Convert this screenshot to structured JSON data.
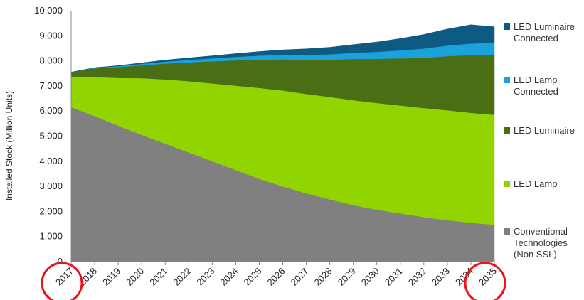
{
  "chart_data": {
    "type": "area",
    "stacked": true,
    "title": "",
    "xlabel": "",
    "ylabel": "Installed Stock (Million Units)",
    "ylim": [
      0,
      10000
    ],
    "y_ticks": [
      "0",
      "1,000",
      "2,000",
      "3,000",
      "4,000",
      "5,000",
      "6,000",
      "7,000",
      "8,000",
      "9,000",
      "10,000"
    ],
    "y_tick_values": [
      0,
      1000,
      2000,
      3000,
      4000,
      5000,
      6000,
      7000,
      8000,
      9000,
      10000
    ],
    "grid": false,
    "legend_position": "right",
    "x": [
      "2017",
      "2018",
      "2019",
      "2020",
      "2021",
      "2022",
      "2023",
      "2024",
      "2025",
      "2026",
      "2027",
      "2028",
      "2029",
      "2030",
      "2031",
      "2032",
      "2033",
      "2034",
      "2035"
    ],
    "highlighted_x": [
      "2017",
      "2035"
    ],
    "highlight_color": "#e8141c",
    "series": [
      {
        "name": "Conventional Technologies (Non SSL)",
        "legend_lines": [
          "Conventional",
          "Technologies",
          "(Non SSL)"
        ],
        "color": "#808080",
        "values": [
          6150,
          5800,
          5420,
          5050,
          4700,
          4350,
          4000,
          3650,
          3300,
          3000,
          2720,
          2480,
          2250,
          2070,
          1920,
          1780,
          1650,
          1550,
          1470
        ]
      },
      {
        "name": "LED Lamp",
        "legend_lines": [
          "LED Lamp"
        ],
        "color": "#92d400",
        "values": [
          1200,
          1550,
          1900,
          2260,
          2560,
          2840,
          3100,
          3360,
          3620,
          3820,
          3960,
          4080,
          4180,
          4250,
          4300,
          4340,
          4380,
          4380,
          4380
        ]
      },
      {
        "name": "LED Luminaire",
        "legend_lines": [
          "LED Luminaire"
        ],
        "color": "#4a6e14",
        "values": [
          200,
          350,
          430,
          510,
          630,
          750,
          880,
          1010,
          1130,
          1240,
          1360,
          1480,
          1650,
          1760,
          1880,
          2000,
          2160,
          2300,
          2390
        ]
      },
      {
        "name": "LED Lamp Connected",
        "legend_lines": [
          "LED Lamp",
          "Connected"
        ],
        "color": "#1ba1dc",
        "values": [
          0,
          20,
          40,
          60,
          80,
          100,
          120,
          140,
          160,
          180,
          200,
          220,
          240,
          280,
          320,
          370,
          420,
          460,
          480
        ]
      },
      {
        "name": "LED Luminaire Connected",
        "legend_lines": [
          "LED Luminaire",
          "Connected"
        ],
        "color": "#0d5a82",
        "values": [
          0,
          10,
          20,
          40,
          60,
          80,
          100,
          130,
          160,
          200,
          240,
          280,
          330,
          390,
          470,
          560,
          660,
          750,
          640
        ]
      }
    ]
  }
}
